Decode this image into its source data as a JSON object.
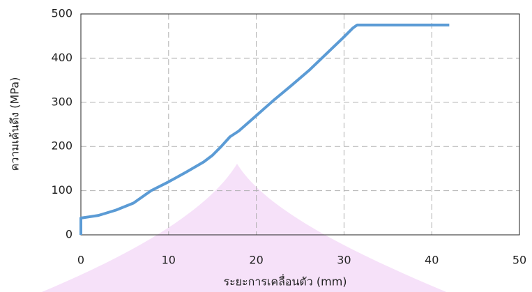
{
  "chart_data": {
    "type": "line",
    "x_label": "ระยะการเคลื่อนตัว (mm)",
    "y_label": "ความเค้นดึง (MPa)",
    "x": [
      0,
      0,
      2,
      4,
      6,
      8,
      10,
      12,
      14,
      15,
      16,
      17,
      18,
      20,
      22,
      24,
      26,
      28,
      30,
      31,
      31.5,
      42
    ],
    "series": [
      {
        "color": "#5b9bd5",
        "values": [
          0,
          38,
          44,
          56,
          72,
          100,
          120,
          142,
          165,
          180,
          200,
          222,
          235,
          270,
          305,
          338,
          372,
          410,
          448,
          468,
          475,
          475
        ]
      }
    ],
    "xlim": [
      0,
      50
    ],
    "xticks": [
      0,
      10,
      20,
      30,
      40,
      50
    ],
    "ylim": [
      0,
      500
    ],
    "yticks": [
      0,
      100,
      200,
      300,
      400,
      500
    ],
    "grid": true
  }
}
